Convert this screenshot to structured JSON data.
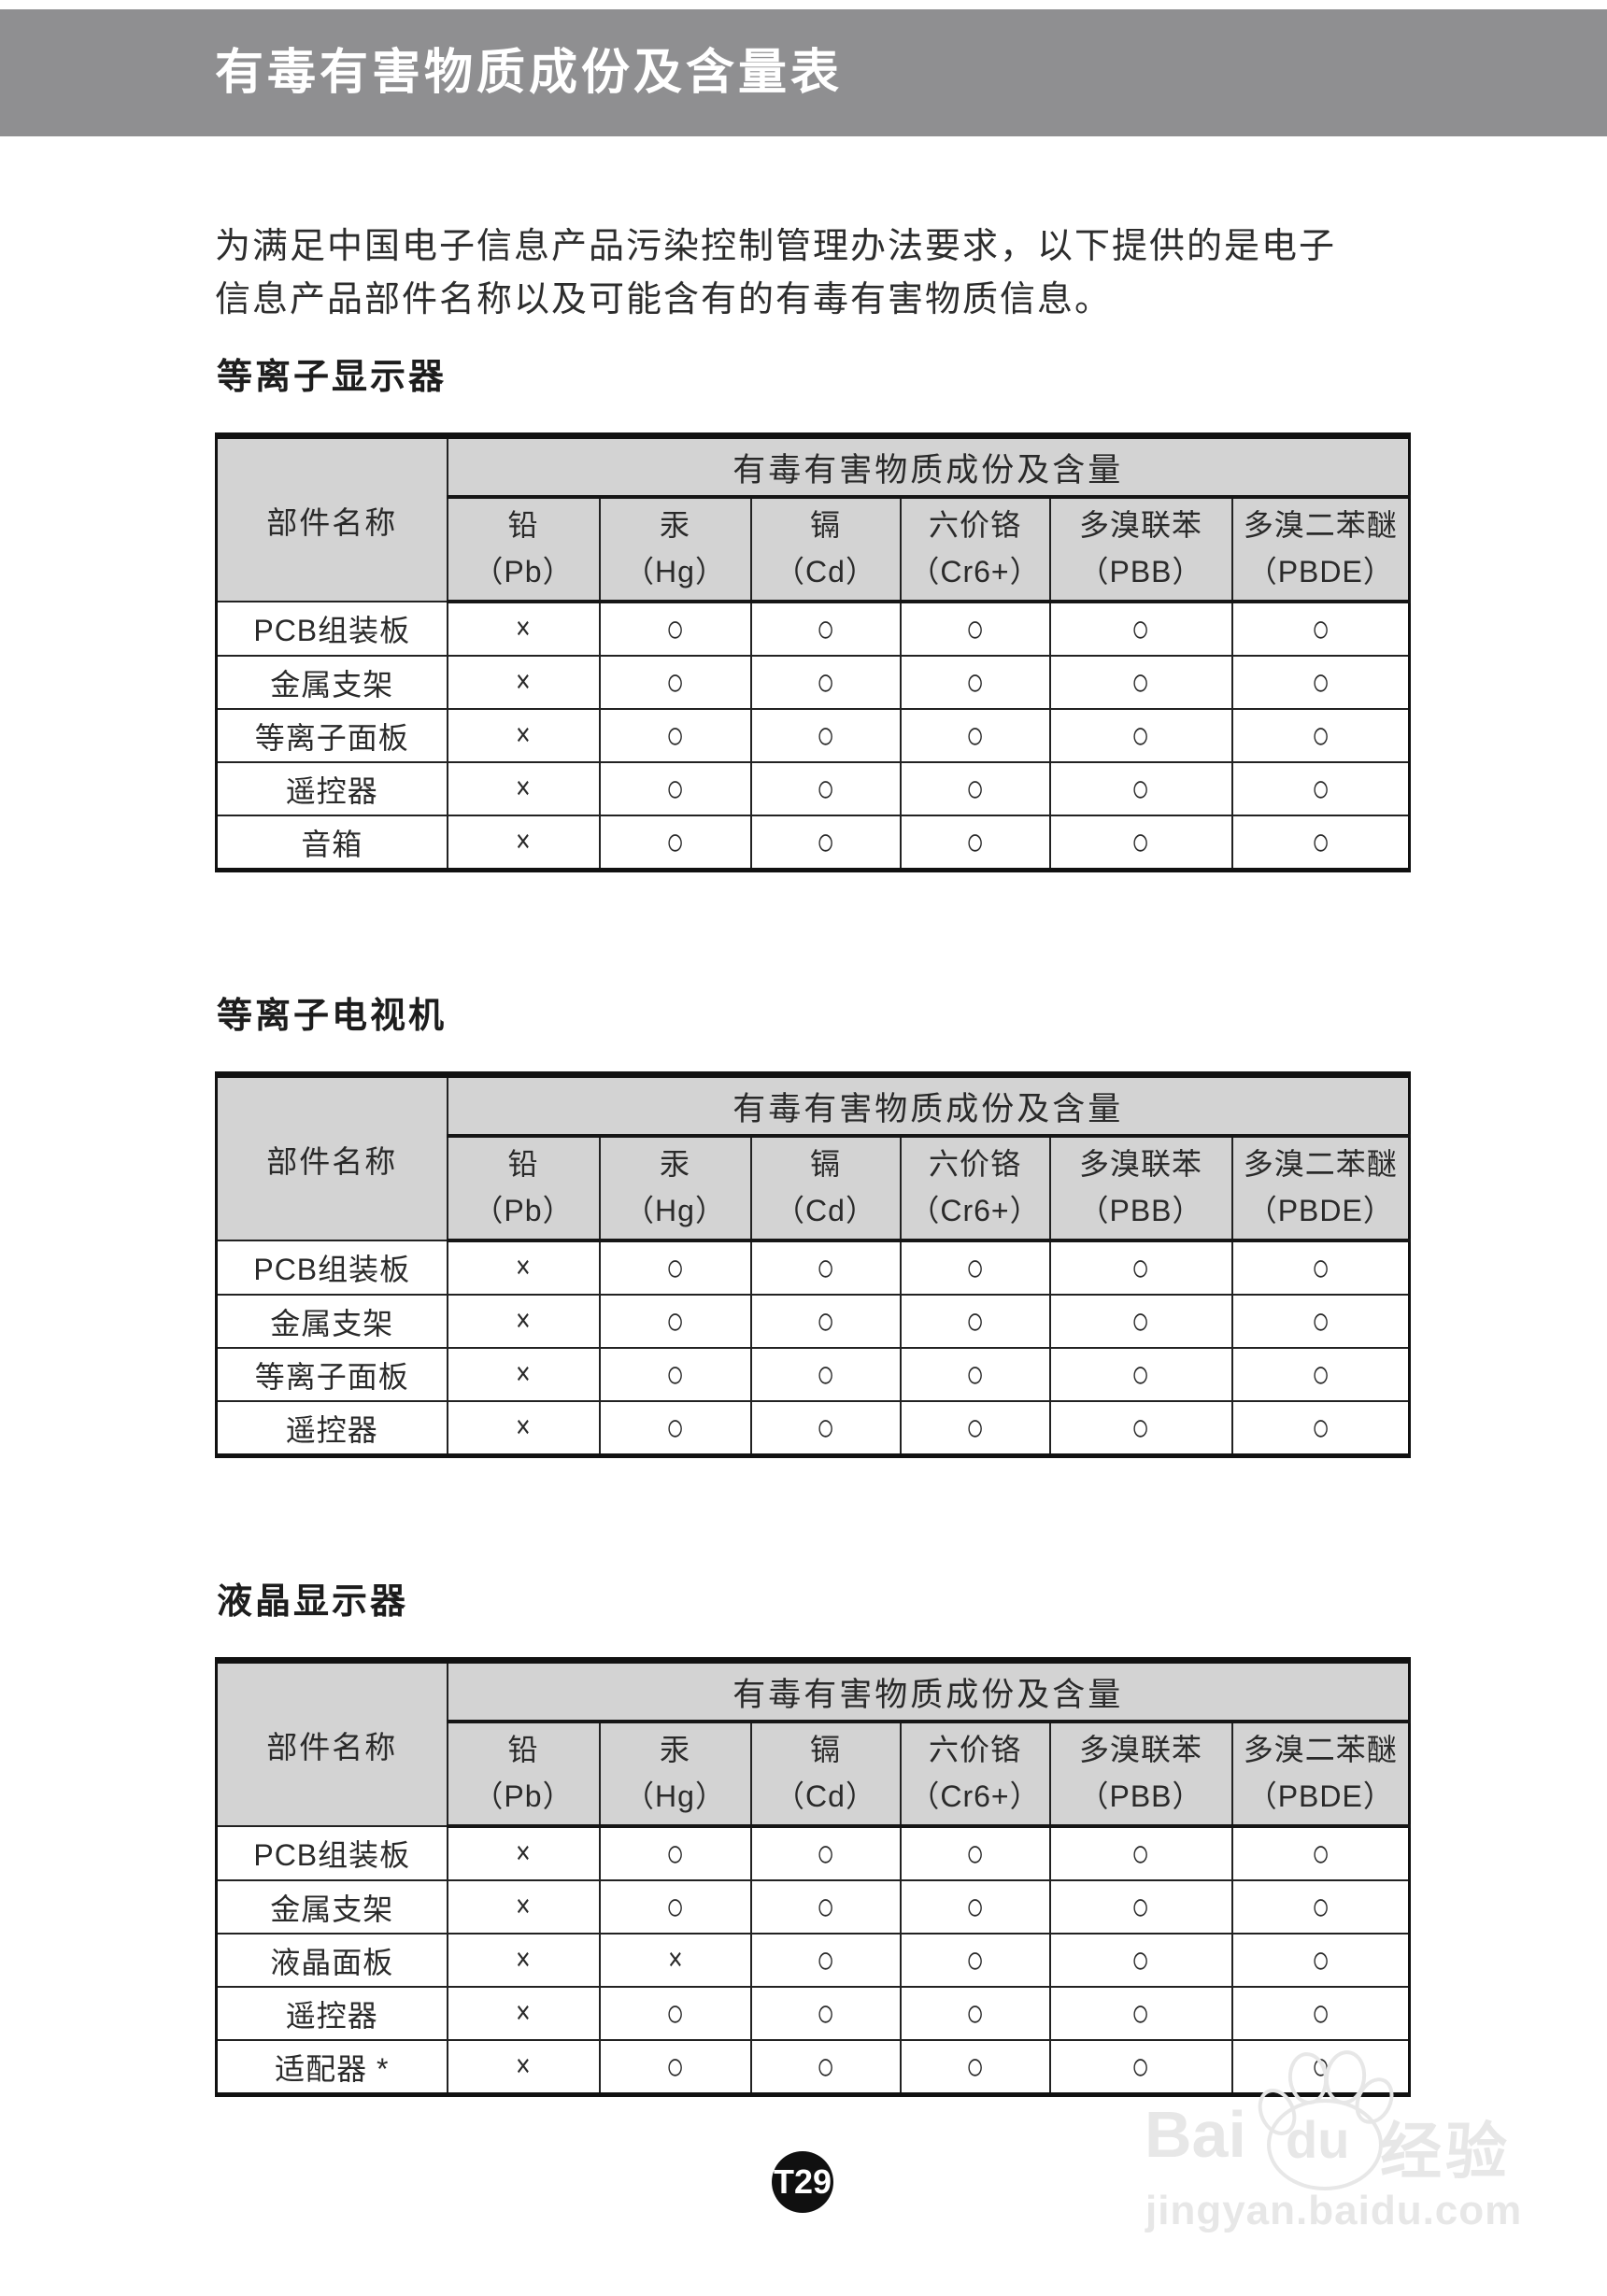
{
  "header": {
    "title": "有毒有害物质成份及含量表"
  },
  "intro_lines": [
    "为满足中国电子信息产品污染控制管理办法要求，以下提供的是电子",
    "信息产品部件名称以及可能含有的有毒有害物质信息。"
  ],
  "table_header": {
    "part_name": "部件名称",
    "substances_title": "有毒有害物质成份及含量",
    "substances": [
      {
        "name": "铅",
        "symbol": "（Pb）"
      },
      {
        "name": "汞",
        "symbol": "（Hg）"
      },
      {
        "name": "镉",
        "symbol": "（Cd）"
      },
      {
        "name": "六价铬",
        "symbol": "（Cr6+）"
      },
      {
        "name": "多溴联苯",
        "symbol": "（PBB）"
      },
      {
        "name": "多溴二苯醚",
        "symbol": "（PBDE）"
      }
    ]
  },
  "sections": [
    {
      "title": "等离子显示器",
      "rows": [
        {
          "part": "PCB组装板",
          "marks": [
            "×",
            "○",
            "○",
            "○",
            "○",
            "○"
          ]
        },
        {
          "part": "金属支架",
          "marks": [
            "×",
            "○",
            "○",
            "○",
            "○",
            "○"
          ]
        },
        {
          "part": "等离子面板",
          "marks": [
            "×",
            "○",
            "○",
            "○",
            "○",
            "○"
          ]
        },
        {
          "part": "遥控器",
          "marks": [
            "×",
            "○",
            "○",
            "○",
            "○",
            "○"
          ]
        },
        {
          "part": "音箱",
          "marks": [
            "×",
            "○",
            "○",
            "○",
            "○",
            "○"
          ]
        }
      ]
    },
    {
      "title": "等离子电视机",
      "rows": [
        {
          "part": "PCB组装板",
          "marks": [
            "×",
            "○",
            "○",
            "○",
            "○",
            "○"
          ]
        },
        {
          "part": "金属支架",
          "marks": [
            "×",
            "○",
            "○",
            "○",
            "○",
            "○"
          ]
        },
        {
          "part": "等离子面板",
          "marks": [
            "×",
            "○",
            "○",
            "○",
            "○",
            "○"
          ]
        },
        {
          "part": "遥控器",
          "marks": [
            "×",
            "○",
            "○",
            "○",
            "○",
            "○"
          ]
        }
      ]
    },
    {
      "title": "液晶显示器",
      "rows": [
        {
          "part": "PCB组装板",
          "marks": [
            "×",
            "○",
            "○",
            "○",
            "○",
            "○"
          ]
        },
        {
          "part": "金属支架",
          "marks": [
            "×",
            "○",
            "○",
            "○",
            "○",
            "○"
          ]
        },
        {
          "part": "液晶面板",
          "marks": [
            "×",
            "×",
            "○",
            "○",
            "○",
            "○"
          ]
        },
        {
          "part": "遥控器",
          "marks": [
            "×",
            "○",
            "○",
            "○",
            "○",
            "○"
          ]
        },
        {
          "part": "适配器 *",
          "marks": [
            "×",
            "○",
            "○",
            "○",
            "○",
            "○"
          ]
        }
      ]
    }
  ],
  "footer": {
    "page_badge": "T29"
  },
  "watermark": {
    "brand_prefix": "Bai",
    "brand_paw_text": "du",
    "brand_suffix": "经验",
    "url": "jingyan.baidu.com"
  },
  "colors": {
    "header_bar": "#8f8f91",
    "table_header_bg": "#d3d3d3",
    "table_border": "#111111",
    "badge_bg": "#101010",
    "watermark": "#e7e7e7"
  }
}
